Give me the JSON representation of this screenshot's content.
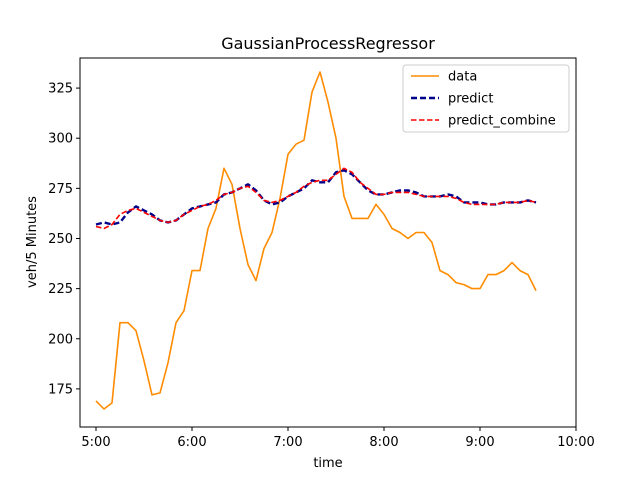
{
  "chart_data": {
    "type": "line",
    "title": "GaussianProcessRegressor",
    "xlabel": "time",
    "ylabel": "veh/5 Minutes",
    "x_unit": "HH:MM",
    "xlim": [
      "4:50",
      "10:00"
    ],
    "ylim": [
      156,
      340
    ],
    "x_ticks": [
      "5:00",
      "6:00",
      "7:00",
      "8:00",
      "9:00",
      "10:00"
    ],
    "y_ticks": [
      175,
      200,
      225,
      250,
      275,
      300,
      325
    ],
    "grid": false,
    "legend_position": "top-right",
    "x": [
      "5:00",
      "5:05",
      "5:10",
      "5:15",
      "5:20",
      "5:25",
      "5:30",
      "5:35",
      "5:40",
      "5:45",
      "5:50",
      "5:55",
      "6:00",
      "6:05",
      "6:10",
      "6:15",
      "6:20",
      "6:25",
      "6:30",
      "6:35",
      "6:40",
      "6:45",
      "6:50",
      "6:55",
      "7:00",
      "7:05",
      "7:10",
      "7:15",
      "7:20",
      "7:25",
      "7:30",
      "7:35",
      "7:40",
      "7:45",
      "7:50",
      "7:55",
      "8:00",
      "8:05",
      "8:10",
      "8:15",
      "8:20",
      "8:25",
      "8:30",
      "8:35",
      "8:40",
      "8:45",
      "8:50",
      "8:55",
      "9:00",
      "9:05",
      "9:10",
      "9:15",
      "9:20",
      "9:25",
      "9:30",
      "9:35"
    ],
    "series": [
      {
        "name": "data",
        "color": "#ff8c00",
        "dash": "solid",
        "values": [
          169,
          165,
          168,
          208,
          208,
          204,
          189,
          172,
          173,
          188,
          208,
          214,
          234,
          234,
          255,
          265,
          285,
          277,
          255,
          237,
          229,
          245,
          253,
          270,
          292,
          297,
          299,
          323,
          333,
          318,
          300,
          271,
          260,
          260,
          260,
          267,
          262,
          255,
          253,
          250,
          253,
          253,
          248,
          234,
          232,
          228,
          227,
          225,
          225,
          232,
          232,
          234,
          238,
          234,
          232,
          224
        ]
      },
      {
        "name": "predict",
        "color": "#00008b",
        "dash": "thick-dashed",
        "values": [
          257,
          258,
          257,
          258,
          263,
          266,
          264,
          262,
          259,
          258,
          259,
          262,
          265,
          266,
          267,
          268,
          272,
          273,
          275,
          277,
          274,
          269,
          267,
          268,
          271,
          273,
          275,
          279,
          278,
          278,
          283,
          284,
          282,
          278,
          274,
          272,
          272,
          273,
          274,
          274,
          273,
          271,
          271,
          271,
          272,
          271,
          268,
          268,
          268,
          267,
          267,
          268,
          268,
          268,
          269,
          268
        ]
      },
      {
        "name": "predict_combine",
        "color": "#ff0000",
        "dash": "dashed",
        "values": [
          256,
          255,
          257,
          262,
          264,
          265,
          263,
          261,
          259,
          258,
          259,
          262,
          264,
          266,
          267,
          269,
          272,
          273,
          275,
          276,
          273,
          269,
          268,
          269,
          271,
          273,
          276,
          278,
          279,
          279,
          282,
          285,
          283,
          278,
          275,
          272,
          272,
          273,
          273,
          273,
          272,
          271,
          271,
          271,
          271,
          270,
          268,
          267,
          267,
          267,
          267,
          268,
          268,
          268,
          269,
          268
        ]
      }
    ]
  }
}
